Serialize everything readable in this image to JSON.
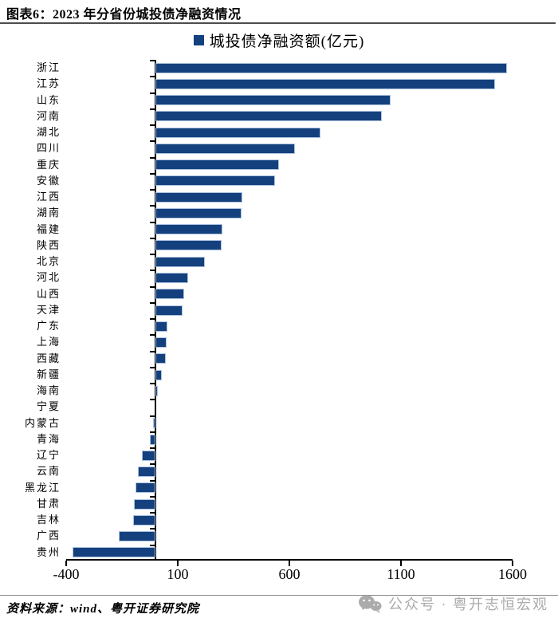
{
  "header": {
    "title": "图表6：2023 年分省份城投债净融资情况"
  },
  "legend": {
    "label": "城投债净融资额(亿元)",
    "swatch_color": "#14417E"
  },
  "chart_data": {
    "type": "bar",
    "orientation": "horizontal",
    "title": "2023 年分省份城投债净融资情况",
    "series_name": "城投债净融资额(亿元)",
    "xlabel": "",
    "ylabel": "",
    "xlim": [
      -400,
      1600
    ],
    "xticks": [
      -400,
      100,
      600,
      1100,
      1600
    ],
    "grid": false,
    "legend_position": "top",
    "bar_color": "#14417E",
    "bar_border_color": "#AEC3DF",
    "categories": [
      "浙江",
      "江苏",
      "山东",
      "河南",
      "湖北",
      "四川",
      "重庆",
      "安徽",
      "江西",
      "湖南",
      "福建",
      "陕西",
      "北京",
      "河北",
      "山西",
      "天津",
      "广东",
      "上海",
      "西藏",
      "新疆",
      "海南",
      "宁夏",
      "内蒙古",
      "青海",
      "辽宁",
      "云南",
      "黑龙江",
      "甘肃",
      "吉林",
      "广西",
      "贵州"
    ],
    "values": [
      1575,
      1520,
      1055,
      1015,
      740,
      625,
      555,
      535,
      390,
      385,
      300,
      295,
      220,
      145,
      130,
      120,
      55,
      50,
      45,
      30,
      10,
      0,
      -10,
      -25,
      -60,
      -80,
      -90,
      -95,
      -100,
      -165,
      -370
    ]
  },
  "footer": {
    "source": "资料来源：wind、粤开证券研究院",
    "watermark": "公众号 · 粤开志恒宏观"
  }
}
